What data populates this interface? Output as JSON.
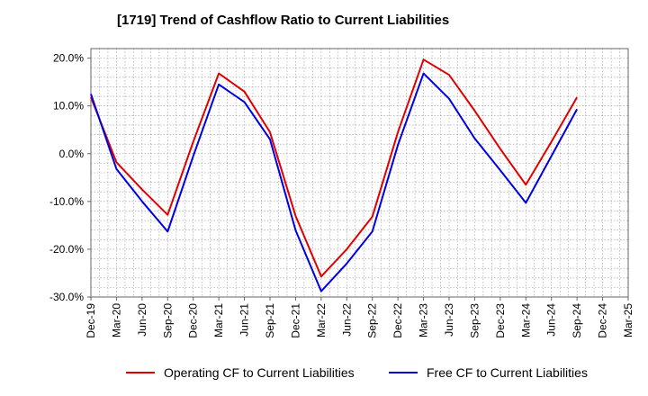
{
  "chart_data": {
    "type": "line",
    "title": "[1719]  Trend of Cashflow Ratio to Current Liabilities",
    "categories": [
      "Dec-19",
      "Mar-20",
      "Jun-20",
      "Sep-20",
      "Dec-20",
      "Mar-21",
      "Jun-21",
      "Sep-21",
      "Dec-21",
      "Mar-22",
      "Jun-22",
      "Sep-22",
      "Dec-22",
      "Mar-23",
      "Jun-23",
      "Sep-23",
      "Dec-23",
      "Mar-24",
      "Jun-24",
      "Sep-24",
      "Dec-24",
      "Mar-25"
    ],
    "y_ticks": [
      "20.0%",
      "10.0%",
      "0.0%",
      "-10.0%",
      "-20.0%",
      "-30.0%"
    ],
    "ylim": [
      -30,
      22
    ],
    "grid": true,
    "legend_position": "bottom",
    "series": [
      {
        "name": "Operating CF to Current Liabilities",
        "color": "#e00000",
        "values": [
          11.8,
          -1.8,
          -7.5,
          -12.8,
          2.5,
          16.8,
          13.0,
          4.5,
          -13.0,
          -25.7,
          -20.0,
          -13.2,
          4.5,
          19.7,
          16.5,
          9.0,
          1.0,
          -6.5,
          2.5,
          11.8,
          null,
          null
        ]
      },
      {
        "name": "Free CF to Current Liabilities",
        "color": "#0000e0",
        "values": [
          12.5,
          -3.2,
          -10.0,
          -16.3,
          -0.5,
          14.5,
          10.8,
          3.0,
          -16.0,
          -28.8,
          -23.0,
          -16.3,
          1.8,
          16.8,
          11.5,
          3.2,
          -3.5,
          -10.3,
          -0.5,
          9.3,
          null,
          null
        ]
      }
    ]
  }
}
